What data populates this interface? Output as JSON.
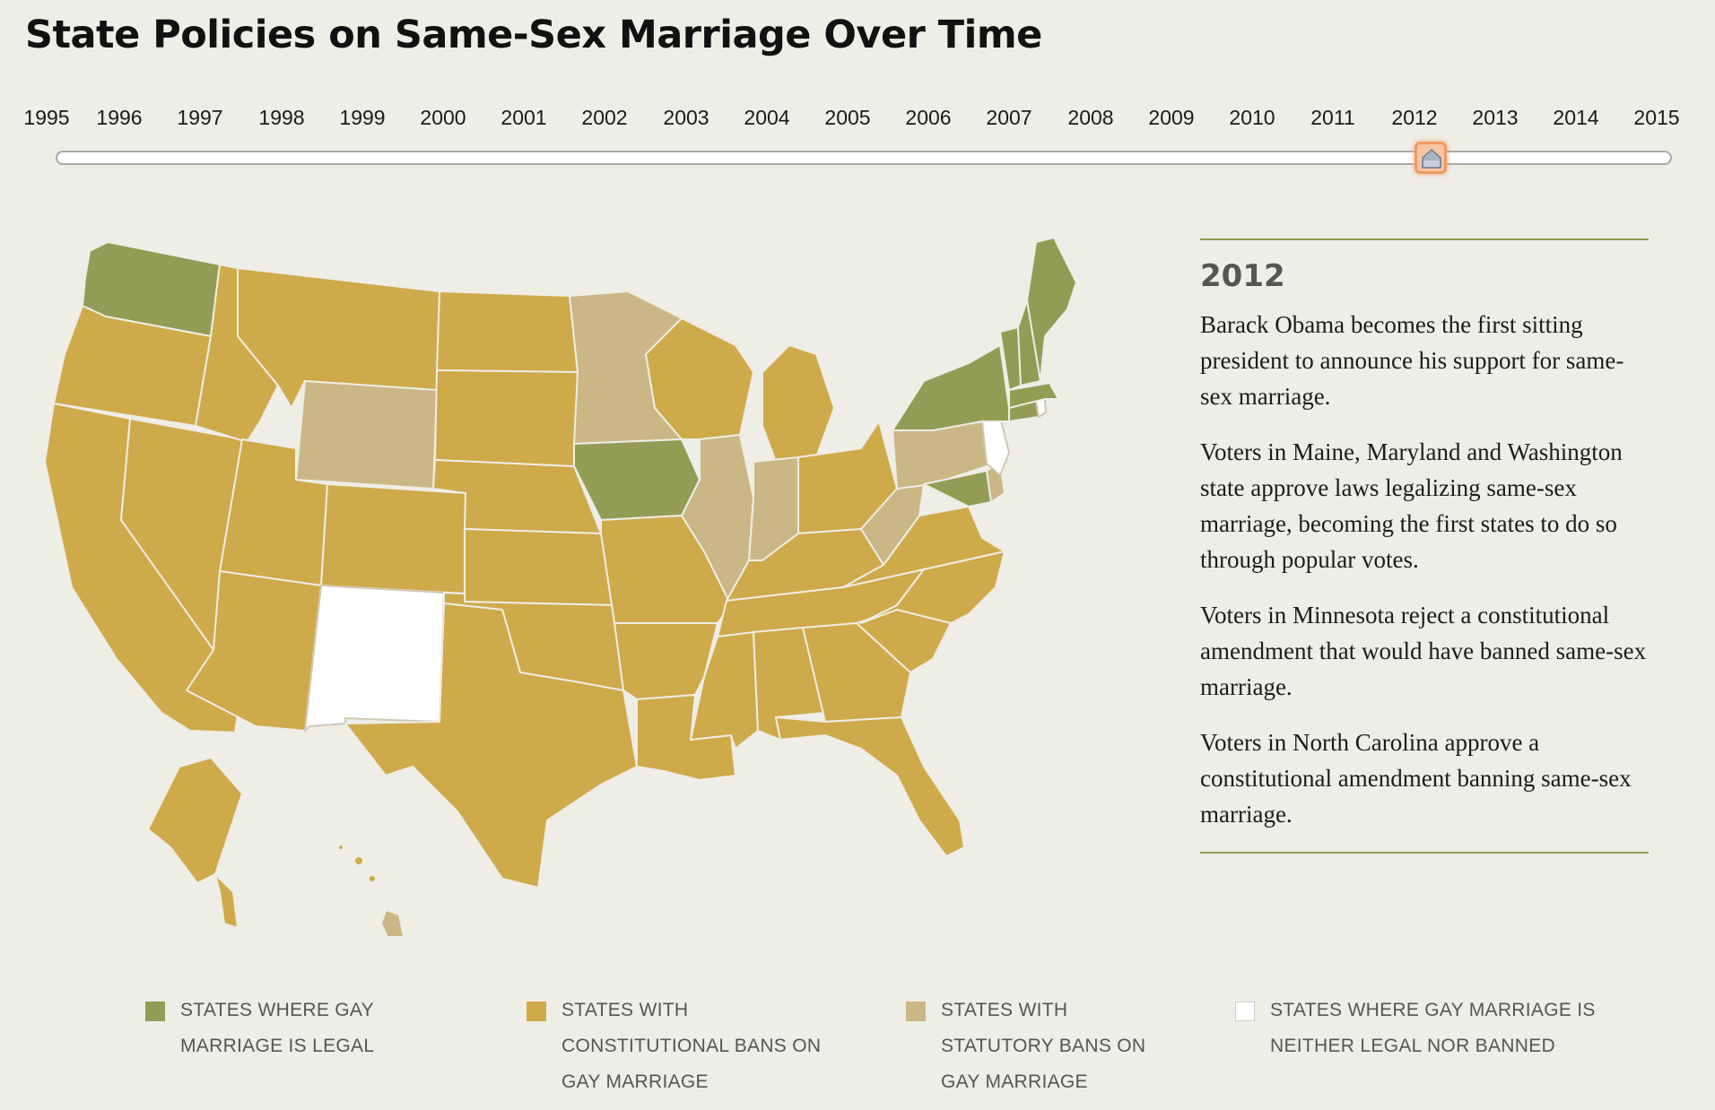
{
  "title": "State Policies on Same-Sex Marriage Over Time",
  "timeline": {
    "years": [
      "1995",
      "1996",
      "1997",
      "1998",
      "1999",
      "2000",
      "2001",
      "2002",
      "2003",
      "2004",
      "2005",
      "2006",
      "2007",
      "2008",
      "2009",
      "2010",
      "2011",
      "2012",
      "2013",
      "2014",
      "2015"
    ],
    "selected_year": "2012"
  },
  "colors": {
    "legal": "#939c55",
    "constitutional_ban": "#cfaa4a",
    "statutory_ban": "#cbb785",
    "neither": "#ffffff",
    "background": "#eeede6",
    "accent_handle": "#ef9a63"
  },
  "panel": {
    "year": "2012",
    "paragraphs": [
      "Barack Obama becomes the first sitting president to announce his support for same-sex marriage.",
      "Voters in Maine, Maryland and Washington state approve laws legalizing same-sex marriage, becoming the first states to do so through popular votes.",
      "Voters in Minnesota reject a constitutional amendment that would have banned same-sex marriage.",
      "Voters in North Carolina approve a constitutional amendment banning same-sex marriage."
    ]
  },
  "legend": [
    {
      "label": "STATES WHERE GAY MARRIAGE IS LEGAL",
      "category": "legal"
    },
    {
      "label": "STATES WITH CONSTITUTIONAL BANS ON GAY MARRIAGE",
      "category": "constitutional_ban"
    },
    {
      "label": "STATES WITH STATUTORY BANS ON GAY MARRIAGE",
      "category": "statutory_ban"
    },
    {
      "label": "STATES WHERE GAY MARRIAGE IS NEITHER LEGAL NOR BANNED",
      "category": "neither"
    }
  ]
}
